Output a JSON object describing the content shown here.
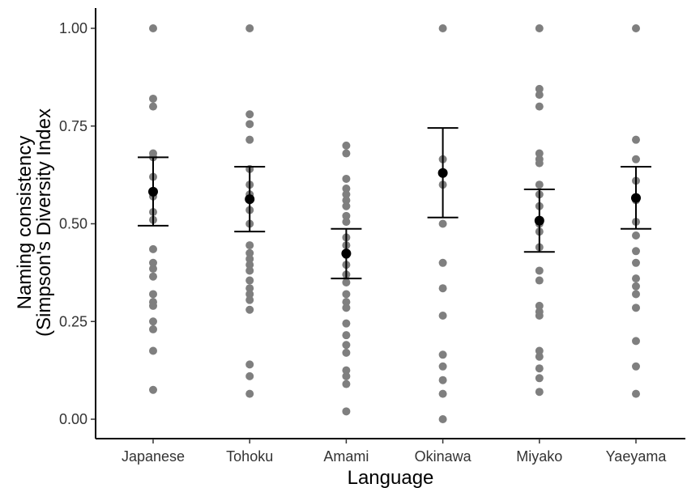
{
  "chart_data": {
    "type": "scatter",
    "xlabel": "Language",
    "ylabel_lines": [
      "Naming consistency",
      "(Simpson's Diversity Index"
    ],
    "categories": [
      "Japanese",
      "Tohoku",
      "Amami",
      "Okinawa",
      "Miyako",
      "Yaeyama"
    ],
    "ylim": [
      0,
      1
    ],
    "yticks": [
      0.0,
      0.25,
      0.5,
      0.75,
      1.0
    ],
    "ytick_labels": [
      "0.00",
      "0.25",
      "0.50",
      "0.75",
      "1.00"
    ],
    "grid": false,
    "points_color": "#7f7f7f",
    "summary_color": "#000000",
    "points": [
      [
        1.0,
        0.82,
        0.8,
        0.68,
        0.67,
        0.62,
        0.57,
        0.53,
        0.51,
        0.435,
        0.4,
        0.385,
        0.365,
        0.32,
        0.3,
        0.29,
        0.25,
        0.23,
        0.175,
        0.075
      ],
      [
        1.0,
        0.78,
        0.755,
        0.715,
        0.64,
        0.6,
        0.575,
        0.535,
        0.5,
        0.445,
        0.425,
        0.41,
        0.395,
        0.38,
        0.355,
        0.335,
        0.32,
        0.305,
        0.28,
        0.14,
        0.11,
        0.065
      ],
      [
        0.7,
        0.68,
        0.615,
        0.59,
        0.575,
        0.56,
        0.545,
        0.52,
        0.505,
        0.465,
        0.445,
        0.42,
        0.395,
        0.37,
        0.35,
        0.32,
        0.3,
        0.285,
        0.245,
        0.215,
        0.19,
        0.17,
        0.125,
        0.11,
        0.09,
        0.02
      ],
      [
        1.0,
        0.665,
        0.6,
        0.5,
        0.4,
        0.335,
        0.265,
        0.165,
        0.135,
        0.1,
        0.065,
        0.0
      ],
      [
        1.0,
        0.845,
        0.83,
        0.8,
        0.68,
        0.665,
        0.655,
        0.6,
        0.575,
        0.545,
        0.5,
        0.48,
        0.44,
        0.38,
        0.355,
        0.29,
        0.275,
        0.265,
        0.175,
        0.16,
        0.13,
        0.105,
        0.07
      ],
      [
        1.0,
        0.715,
        0.665,
        0.61,
        0.56,
        0.505,
        0.47,
        0.43,
        0.4,
        0.36,
        0.34,
        0.32,
        0.285,
        0.2,
        0.135,
        0.065
      ]
    ],
    "means": [
      0.582,
      0.563,
      0.424,
      0.63,
      0.508,
      0.566
    ],
    "error_low": [
      0.495,
      0.48,
      0.36,
      0.516,
      0.428,
      0.487
    ],
    "error_high": [
      0.67,
      0.646,
      0.487,
      0.745,
      0.588,
      0.646
    ]
  }
}
